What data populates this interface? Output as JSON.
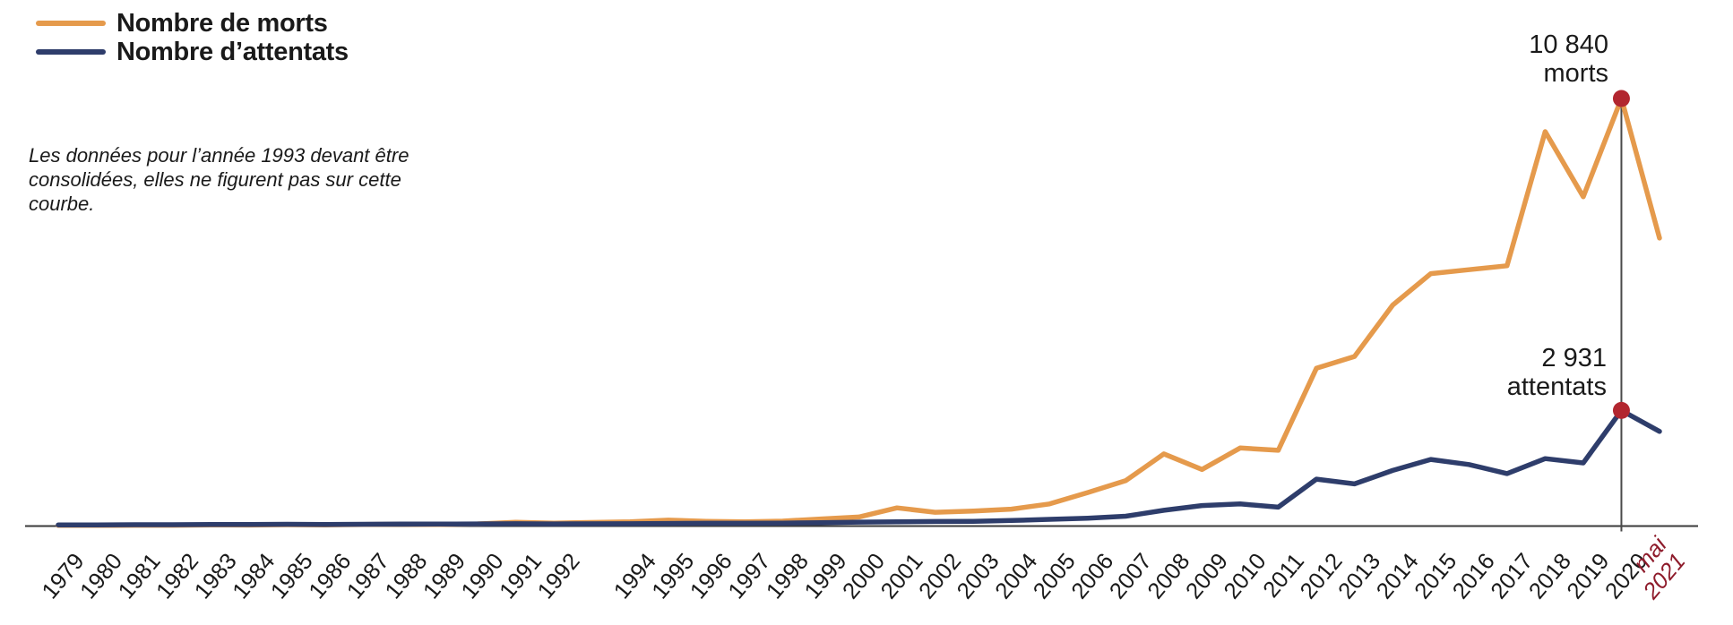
{
  "legend": {
    "items": [
      {
        "id": "morts",
        "label": "Nombre de morts",
        "color": "#e59a4c"
      },
      {
        "id": "attentats",
        "label": "Nombre d’attentats",
        "color": "#2e3d6b"
      }
    ]
  },
  "note": {
    "lines": [
      "Les données pour l’année 1993 devant être",
      "consolidées, elles ne figurent pas sur cette",
      "courbe."
    ],
    "full_text": "Les données pour l’année 1993 devant être consolidées, elles ne figurent pas sur cette courbe."
  },
  "annotations": {
    "morts": {
      "value": "10 840",
      "label": "morts"
    },
    "attentats": {
      "value": "2 931",
      "label": "attentats"
    }
  },
  "colors": {
    "morts_line": "#e59a4c",
    "attentats_line": "#2e3d6b",
    "marker_red": "#b2262f",
    "special_label_red": "#8e1b2b",
    "axis_line": "#3a3a3a",
    "text": "#1a1a1a"
  },
  "chart_data": {
    "type": "line",
    "title": "",
    "xlabel": "",
    "ylabel": "",
    "grid": false,
    "legend_position": "top-left",
    "ylim": [
      0,
      11000
    ],
    "x_gap_after": "1992",
    "categories": [
      "1979",
      "1980",
      "1981",
      "1982",
      "1983",
      "1984",
      "1985",
      "1986",
      "1987",
      "1988",
      "1989",
      "1990",
      "1991",
      "1992",
      "1994",
      "1995",
      "1996",
      "1997",
      "1998",
      "1999",
      "2000",
      "2001",
      "2002",
      "2003",
      "2004",
      "2005",
      "2006",
      "2007",
      "2008",
      "2009",
      "2010",
      "2011",
      "2012",
      "2013",
      "2014",
      "2015",
      "2016",
      "2017",
      "2018",
      "2019",
      "2020",
      "mai 2021"
    ],
    "series": [
      {
        "id": "morts",
        "name": "Nombre de morts",
        "color": "#e59a4c",
        "values": [
          15,
          15,
          20,
          20,
          30,
          25,
          35,
          30,
          40,
          45,
          40,
          55,
          95,
          75,
          110,
          150,
          120,
          110,
          125,
          180,
          230,
          460,
          350,
          380,
          430,
          560,
          850,
          1150,
          1830,
          1435,
          1980,
          1920,
          4000,
          4300,
          5600,
          6400,
          6500,
          6600,
          10000,
          8350,
          10840,
          7300
        ]
      },
      {
        "id": "attentats",
        "name": "Nombre d’attentats",
        "color": "#2e3d6b",
        "values": [
          30,
          30,
          35,
          35,
          40,
          40,
          45,
          40,
          45,
          50,
          50,
          55,
          60,
          55,
          60,
          65,
          70,
          70,
          75,
          85,
          100,
          110,
          115,
          120,
          140,
          170,
          200,
          250,
          400,
          520,
          560,
          480,
          1190,
          1070,
          1410,
          1690,
          1560,
          1330,
          1710,
          1600,
          2931,
          2400
        ]
      }
    ],
    "highlight": {
      "category": "2020",
      "marker_color": "#b2262f",
      "marker_radius": 9.5,
      "vline_color": "#4a4a4a",
      "labels": [
        "10 840 morts",
        "2 931 attentats"
      ]
    },
    "axis": {
      "line_color": "#3a3a3a",
      "label_color": "#1a1a1a",
      "special_label": "mai 2021",
      "special_label_color": "#8e1b2b",
      "label_rotation_deg": -50
    }
  }
}
